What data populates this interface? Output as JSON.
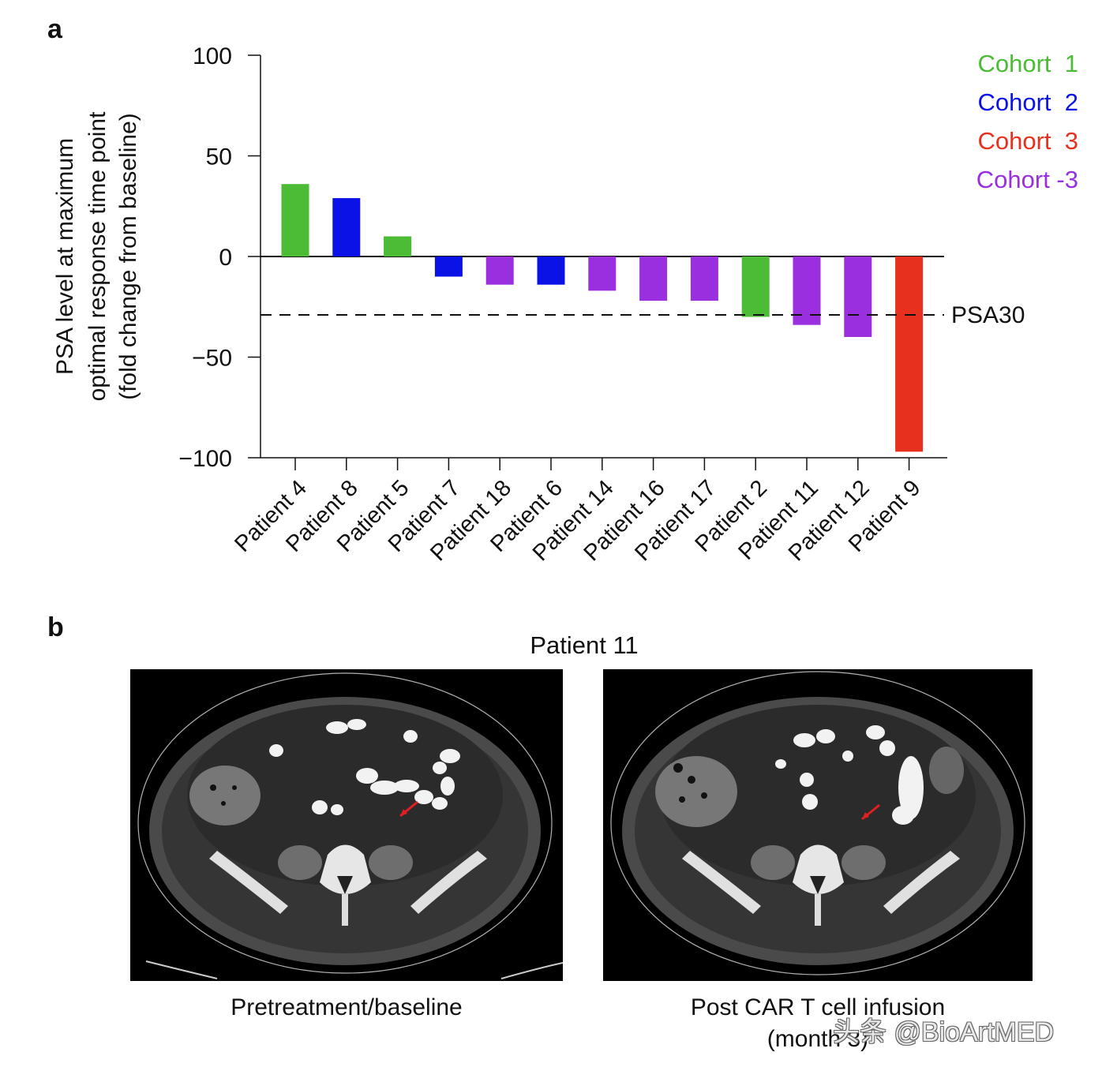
{
  "panels": {
    "a_label": "a",
    "b_label": "b"
  },
  "chart_data": {
    "type": "bar",
    "ylabel_lines": [
      "PSA level at maximum",
      "optimal response time point",
      "(fold change from baseline)"
    ],
    "ylim": [
      -100,
      100
    ],
    "yticks": [
      100,
      50,
      0,
      -50,
      -100
    ],
    "ytick_labels": [
      "100",
      "50",
      "0",
      "−50",
      "−100"
    ],
    "categories": [
      "Patient 4",
      "Patient 8",
      "Patient 5",
      "Patient 7",
      "Patient 18",
      "Patient 6",
      "Patient 14",
      "Patient 16",
      "Patient 17",
      "Patient 2",
      "Patient 11",
      "Patient 12",
      "Patient 9"
    ],
    "values": [
      36,
      29,
      10,
      -10,
      -14,
      -14,
      -17,
      -22,
      -22,
      -30,
      -34,
      -40,
      -97
    ],
    "cohorts": [
      "Cohort 1",
      "Cohort 2",
      "Cohort 1",
      "Cohort 2",
      "Cohort -3",
      "Cohort 2",
      "Cohort -3",
      "Cohort -3",
      "Cohort -3",
      "Cohort 1",
      "Cohort -3",
      "Cohort -3",
      "Cohort 3"
    ],
    "legend": [
      {
        "name": "Cohort  1",
        "color": "#4cbb35"
      },
      {
        "name": "Cohort  2",
        "color": "#0a12e6"
      },
      {
        "name": "Cohort  3",
        "color": "#e8301e"
      },
      {
        "name": "Cohort -3",
        "color": "#9a2fe0"
      }
    ],
    "cohort_colors": {
      "Cohort 1": "#4cbb35",
      "Cohort 2": "#0a12e6",
      "Cohort 3": "#e8301e",
      "Cohort -3": "#9a2fe0"
    },
    "reference_line": {
      "value": -29,
      "label": "PSA30",
      "style": "dashed"
    },
    "legend_position": "top-right",
    "grid": false
  },
  "panel_b": {
    "title": "Patient 11",
    "left_caption": "Pretreatment/baseline",
    "right_caption_line1": "Post CAR T cell infusion",
    "right_caption_line2": "(month 3)"
  },
  "watermark": "头条 @BioArtMED"
}
